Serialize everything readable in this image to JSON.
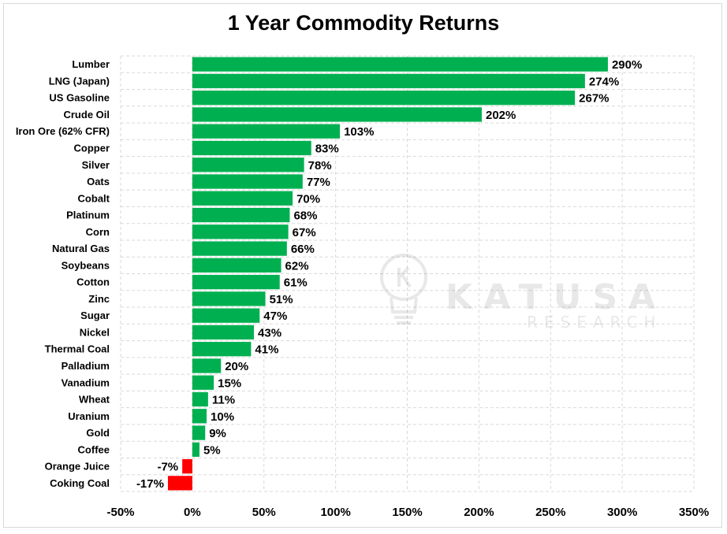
{
  "chart_data": {
    "type": "bar",
    "orientation": "horizontal",
    "title": "1 Year Commodity Returns",
    "xlabel": "",
    "ylabel": "",
    "xlim": [
      -50,
      350
    ],
    "x_ticks": [
      -50,
      0,
      50,
      100,
      150,
      200,
      250,
      300,
      350
    ],
    "tick_suffix": "%",
    "grid": true,
    "legend": "none",
    "categories": [
      "Lumber",
      "LNG (Japan)",
      "US Gasoline",
      "Crude Oil",
      "Iron Ore (62% CFR)",
      "Copper",
      "Silver",
      "Oats",
      "Cobalt",
      "Platinum",
      "Corn",
      "Natural Gas",
      "Soybeans",
      "Cotton",
      "Zinc",
      "Sugar",
      "Nickel",
      "Thermal Coal",
      "Palladium",
      "Vanadium",
      "Wheat",
      "Uranium",
      "Gold",
      "Coffee",
      "Orange Juice",
      "Coking Coal"
    ],
    "values": [
      290,
      274,
      267,
      202,
      103,
      83,
      78,
      77,
      70,
      68,
      67,
      66,
      62,
      61,
      51,
      47,
      43,
      41,
      20,
      15,
      11,
      10,
      9,
      5,
      -7,
      -17
    ],
    "colors": {
      "positive": "#00b050",
      "negative": "#ff0000"
    }
  },
  "watermark": {
    "name": "KATUSA",
    "sub": "RESEARCH",
    "icon": "lightbulb-icon"
  }
}
